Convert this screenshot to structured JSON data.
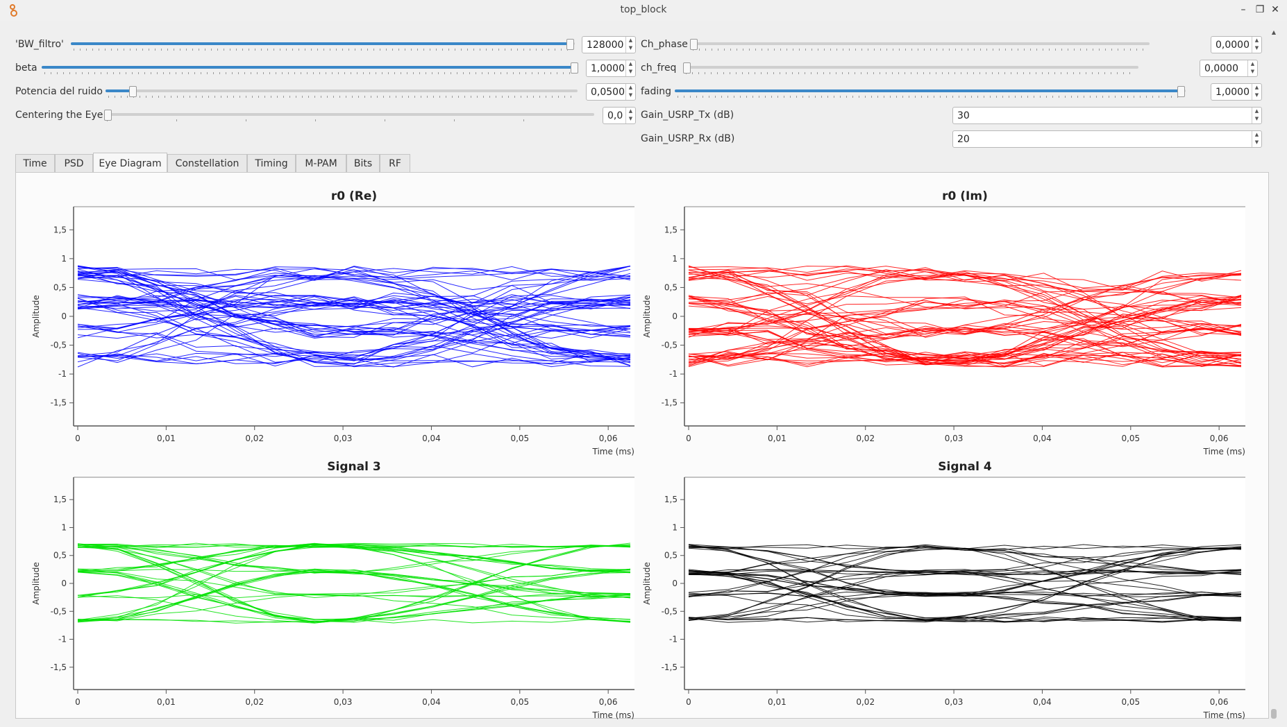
{
  "window": {
    "title": "top_block",
    "icon": "gnuradio-icon",
    "buttons": {
      "minimize": "–",
      "maximize": "❐",
      "close": "✕"
    }
  },
  "controls": {
    "bw_filtro": {
      "label": "'BW_filtro'",
      "value": "128000",
      "level": 1.0
    },
    "beta": {
      "label": "beta",
      "value": "1,0000",
      "level": 1.0
    },
    "potencia_ruido": {
      "label": "Potencia del ruido",
      "value": "0,0500",
      "level": 0.05
    },
    "centering_eye": {
      "label": "Centering the Eye",
      "value": "0,0",
      "level": 0.0
    },
    "ch_phase": {
      "label": "Ch_phase",
      "value": "0,0000",
      "level": 0.0
    },
    "ch_freq": {
      "label": "ch_freq",
      "value": "0,0000",
      "level": 0.0
    },
    "fading": {
      "label": "fading",
      "value": "1,0000",
      "level": 1.0
    },
    "gain_tx": {
      "label": "Gain_USRP_Tx (dB)",
      "value": "30"
    },
    "gain_rx": {
      "label": "Gain_USRP_Rx (dB)",
      "value": "20"
    }
  },
  "tabs": [
    "Time",
    "PSD",
    "Eye Diagram",
    "Constellation",
    "Timing",
    "M-PAM",
    "Bits",
    "RF"
  ],
  "active_tab": "Eye Diagram",
  "chart_data": [
    {
      "type": "line",
      "title": "r0 (Re)",
      "ylabel": "Amplitude",
      "xlabel": "Time (ms)",
      "color": "#0000ff",
      "xlim": [
        0,
        0.0625
      ],
      "ylim": [
        -1.9,
        1.9
      ],
      "xticks": [
        "0",
        "0,01",
        "0,02",
        "0,03",
        "0,04",
        "0,05",
        "0,06"
      ],
      "yticks": [
        "1,5",
        "1",
        "0,5",
        "0",
        "-0,5",
        "-1",
        "-1,5"
      ],
      "levels": [
        -0.75,
        -0.25,
        0.25,
        0.75
      ],
      "noise": 0.13,
      "traces": 60,
      "eye_center_ms": 0.0285
    },
    {
      "type": "line",
      "title": "r0 (Im)",
      "ylabel": "Amplitude",
      "xlabel": "Time (ms)",
      "color": "#ff0000",
      "xlim": [
        0,
        0.0625
      ],
      "ylim": [
        -1.9,
        1.9
      ],
      "xticks": [
        "0",
        "0,01",
        "0,02",
        "0,03",
        "0,04",
        "0,05",
        "0,06"
      ],
      "yticks": [
        "1,5",
        "1",
        "0,5",
        "0",
        "-0,5",
        "-1",
        "-1,5"
      ],
      "levels": [
        -0.75,
        -0.25,
        0.25,
        0.75
      ],
      "noise": 0.13,
      "traces": 60,
      "eye_center_ms": 0.0285
    },
    {
      "type": "line",
      "title": "Signal 3",
      "ylabel": "Amplitude",
      "xlabel": "Time (ms)",
      "color": "#00e000",
      "xlim": [
        0,
        0.0625
      ],
      "ylim": [
        -1.9,
        1.9
      ],
      "xticks": [
        "0",
        "0,01",
        "0,02",
        "0,03",
        "0,04",
        "0,05",
        "0,06"
      ],
      "yticks": [
        "1,5",
        "1",
        "0,5",
        "0",
        "-0,5",
        "-1",
        "-1,5"
      ],
      "levels": [
        -0.68,
        -0.22,
        0.22,
        0.68
      ],
      "noise": 0.04,
      "traces": 40,
      "eye_center_ms": 0.0275
    },
    {
      "type": "line",
      "title": "Signal 4",
      "ylabel": "Amplitude",
      "xlabel": "Time (ms)",
      "color": "#000000",
      "xlim": [
        0,
        0.0625
      ],
      "ylim": [
        -1.9,
        1.9
      ],
      "xticks": [
        "0",
        "0,01",
        "0,02",
        "0,03",
        "0,04",
        "0,05",
        "0,06"
      ],
      "yticks": [
        "1,5",
        "1",
        "0,5",
        "0",
        "-0,5",
        "-1",
        "-1,5"
      ],
      "levels": [
        -0.65,
        -0.2,
        0.2,
        0.65
      ],
      "noise": 0.05,
      "traces": 40,
      "eye_center_ms": 0.0275
    }
  ]
}
